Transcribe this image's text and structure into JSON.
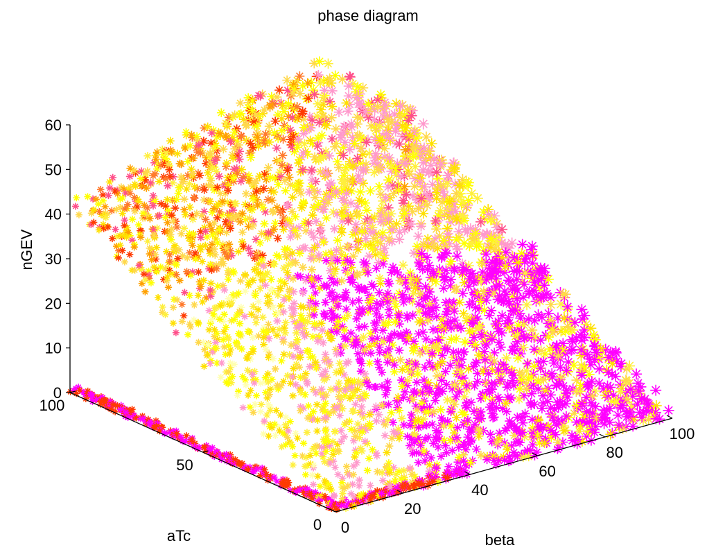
{
  "chart_data": {
    "type": "scatter",
    "title": "phase diagram",
    "xlabel": "beta",
    "ylabel": "aTc",
    "zlabel": "nGEV",
    "xlim": [
      0,
      100
    ],
    "ylim": [
      0,
      100
    ],
    "zlim": [
      0,
      60
    ],
    "x_ticks": [
      "0",
      "20",
      "40",
      "60",
      "80",
      "100"
    ],
    "y_ticks": [
      "0",
      "50",
      "100"
    ],
    "z_ticks": [
      "0",
      "10",
      "20",
      "30",
      "40",
      "50",
      "60"
    ],
    "grid": false,
    "marker": "*",
    "colors": [
      "#ffff00",
      "#ffef3c",
      "#ffd84a",
      "#ffa000",
      "#ff7a2c",
      "#ff3a00",
      "#ff4f8a",
      "#ff99cc",
      "#ff00ff",
      "#ffffb0"
    ],
    "samples": [
      {
        "beta": 0,
        "aTc": 0,
        "nGEV": 0
      },
      {
        "beta": 10,
        "aTc": 100,
        "nGEV": 10
      },
      {
        "beta": 30,
        "aTc": 100,
        "nGEV": 30
      },
      {
        "beta": 50,
        "aTc": 100,
        "nGEV": 50
      },
      {
        "beta": 60,
        "aTc": 100,
        "nGEV": 57
      },
      {
        "beta": 80,
        "aTc": 100,
        "nGEV": 52
      },
      {
        "beta": 100,
        "aTc": 100,
        "nGEV": 40
      },
      {
        "beta": 100,
        "aTc": 60,
        "nGEV": 36
      },
      {
        "beta": 100,
        "aTc": 20,
        "nGEV": 12
      },
      {
        "beta": 40,
        "aTc": 0,
        "nGEV": 0
      },
      {
        "beta": 100,
        "aTc": 0,
        "nGEV": 0
      }
    ]
  }
}
